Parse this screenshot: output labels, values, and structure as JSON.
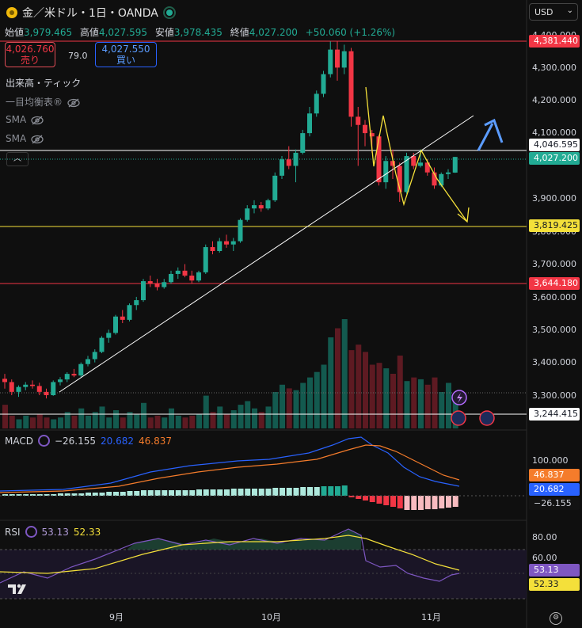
{
  "header": {
    "title": "金／米ドル・1日・OANDA",
    "ohlc": [
      {
        "label": "始値",
        "value": "3,979.465"
      },
      {
        "label": "高値",
        "value": "4,027.595"
      },
      {
        "label": "安値",
        "value": "3,978.435"
      },
      {
        "label": "終値",
        "value": "4,027.200"
      }
    ],
    "change": "+50.060 (+1.26%)"
  },
  "trade": {
    "sell_price": "4,026.760",
    "sell_label": "売り",
    "spread": "79.0",
    "buy_price": "4,027.550",
    "buy_label": "買い"
  },
  "indicators": {
    "volume": "出来高・ティック",
    "ichimoku": "一目均衡表®",
    "sma1": "SMA",
    "sma2": "SMA"
  },
  "currency": {
    "selected": "USD"
  },
  "price_axis": {
    "ticks": [
      "4,400.000",
      "4,300.000",
      "4,200.000",
      "4,100.000",
      "3,900.000",
      "3,800.000",
      "3,700.000",
      "3,600.000",
      "3,500.000",
      "3,400.000",
      "3,300.000"
    ],
    "tags": [
      {
        "text": "4,381.440",
        "bg": "#f23645",
        "fg": "#ffffff"
      },
      {
        "text": "4,046.595",
        "bg": "#ffffff",
        "fg": "#131722"
      },
      {
        "text": "4,027.200",
        "bg": "#22ab94",
        "fg": "#ffffff"
      },
      {
        "text": "3,819.425",
        "bg": "#f4e03a",
        "fg": "#131722"
      },
      {
        "text": "3,644.180",
        "bg": "#f23645",
        "fg": "#ffffff"
      },
      {
        "text": "3,244.415",
        "bg": "#ffffff",
        "fg": "#131722"
      }
    ]
  },
  "macd": {
    "label": "MACD",
    "hist": "−26.155",
    "macd": "20.682",
    "signal": "46.837",
    "axis_tick": "100.000",
    "tags": [
      {
        "text": "46.837",
        "bg": "#f57c2b",
        "fg": "#ffffff"
      },
      {
        "text": "20.682",
        "bg": "#2962ff",
        "fg": "#ffffff"
      },
      {
        "text": "−26.155",
        "bg": "#131313",
        "fg": "#d1d4dc"
      }
    ]
  },
  "rsi": {
    "label": "RSI",
    "rsi": "53.13",
    "ma": "52.33",
    "axis_ticks": [
      "80.00",
      "60.00"
    ],
    "tags": [
      {
        "text": "53.13",
        "bg": "#7e57c2",
        "fg": "#ffffff"
      },
      {
        "text": "52.33",
        "bg": "#f4e03a",
        "fg": "#131722"
      }
    ]
  },
  "time_axis": [
    "9月",
    "10月",
    "11月"
  ],
  "chart_data": {
    "type": "candlestick",
    "timeframe": "1日",
    "symbol": "金／米ドル",
    "y_range": [
      3250,
      4420
    ],
    "candles": [
      [
        3350,
        3365,
        3320,
        3340
      ],
      [
        3340,
        3348,
        3300,
        3310
      ],
      [
        3310,
        3330,
        3295,
        3325
      ],
      [
        3325,
        3340,
        3315,
        3332
      ],
      [
        3332,
        3345,
        3320,
        3328
      ],
      [
        3328,
        3338,
        3300,
        3310
      ],
      [
        3310,
        3320,
        3290,
        3300
      ],
      [
        3300,
        3345,
        3298,
        3340
      ],
      [
        3340,
        3355,
        3330,
        3348
      ],
      [
        3348,
        3370,
        3340,
        3365
      ],
      [
        3365,
        3380,
        3355,
        3360
      ],
      [
        3360,
        3400,
        3355,
        3395
      ],
      [
        3395,
        3420,
        3388,
        3410
      ],
      [
        3410,
        3440,
        3400,
        3432
      ],
      [
        3432,
        3480,
        3428,
        3475
      ],
      [
        3475,
        3500,
        3460,
        3490
      ],
      [
        3490,
        3545,
        3485,
        3540
      ],
      [
        3540,
        3560,
        3520,
        3530
      ],
      [
        3530,
        3580,
        3525,
        3575
      ],
      [
        3575,
        3600,
        3560,
        3590
      ],
      [
        3590,
        3655,
        3585,
        3648
      ],
      [
        3648,
        3665,
        3630,
        3640
      ],
      [
        3640,
        3655,
        3620,
        3630
      ],
      [
        3630,
        3655,
        3625,
        3645
      ],
      [
        3645,
        3680,
        3640,
        3670
      ],
      [
        3670,
        3690,
        3655,
        3680
      ],
      [
        3680,
        3700,
        3660,
        3665
      ],
      [
        3665,
        3680,
        3640,
        3650
      ],
      [
        3650,
        3680,
        3645,
        3675
      ],
      [
        3675,
        3760,
        3670,
        3752
      ],
      [
        3752,
        3770,
        3730,
        3740
      ],
      [
        3740,
        3780,
        3735,
        3770
      ],
      [
        3770,
        3790,
        3750,
        3760
      ],
      [
        3760,
        3780,
        3740,
        3770
      ],
      [
        3770,
        3840,
        3765,
        3835
      ],
      [
        3835,
        3880,
        3830,
        3870
      ],
      [
        3870,
        3895,
        3855,
        3880
      ],
      [
        3880,
        3890,
        3860,
        3870
      ],
      [
        3870,
        3900,
        3865,
        3895
      ],
      [
        3895,
        3980,
        3890,
        3970
      ],
      [
        3970,
        4030,
        3960,
        4020
      ],
      [
        4020,
        4060,
        3990,
        4000
      ],
      [
        4000,
        4050,
        3950,
        4040
      ],
      [
        4040,
        4110,
        4035,
        4100
      ],
      [
        4100,
        4180,
        4090,
        4160
      ],
      [
        4160,
        4230,
        4150,
        4220
      ],
      [
        4220,
        4290,
        4210,
        4280
      ],
      [
        4280,
        4380,
        4270,
        4355
      ],
      [
        4355,
        4381,
        4260,
        4300
      ],
      [
        4300,
        4370,
        4280,
        4350
      ],
      [
        4350,
        4360,
        4120,
        4150
      ],
      [
        4150,
        4180,
        4000,
        4125
      ],
      [
        4125,
        4140,
        4060,
        4100
      ],
      [
        4100,
        4110,
        4040,
        4090
      ],
      [
        4090,
        4095,
        3940,
        3950
      ],
      [
        3950,
        4030,
        3930,
        4015
      ],
      [
        4015,
        4050,
        3960,
        4000
      ],
      [
        4000,
        4010,
        3890,
        3920
      ],
      [
        3920,
        4040,
        3915,
        4030
      ],
      [
        4030,
        4040,
        3990,
        4000
      ],
      [
        4000,
        4050,
        3995,
        4010
      ],
      [
        4010,
        4020,
        3970,
        3980
      ],
      [
        3980,
        3995,
        3930,
        3940
      ],
      [
        3940,
        3980,
        3935,
        3975
      ],
      [
        3975,
        3990,
        3960,
        3980
      ],
      [
        3979.465,
        4027.595,
        3978.435,
        4027.2
      ]
    ]
  },
  "colors": {
    "up": "#22ab94",
    "down": "#f23645",
    "bg": "#0f0f0f",
    "hline_red": "#f23645",
    "hline_yellow": "#f4e03a",
    "hline_white": "#ffffff"
  }
}
